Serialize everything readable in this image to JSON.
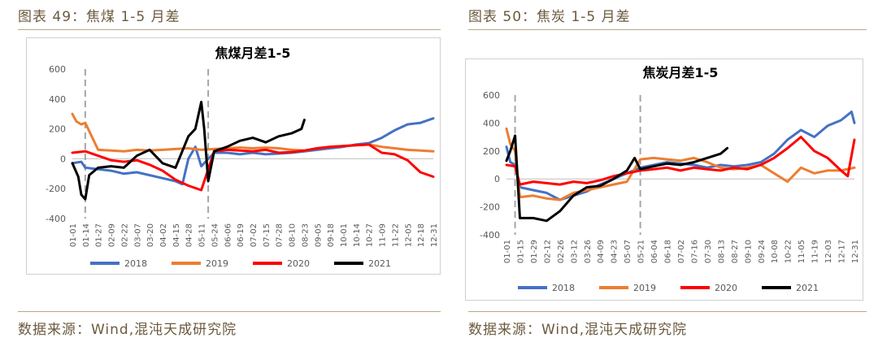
{
  "left": {
    "caption": "图表 49：焦煤 1-5 月差",
    "source": "数据来源：Wind,混沌天成研究院"
  },
  "right": {
    "caption": "图表 50：焦炭 1-5 月差",
    "source": "数据来源：Wind,混沌天成研究院"
  },
  "colors": {
    "2018": "#4472c4",
    "2019": "#ed7d31",
    "2020": "#ff0000",
    "2021": "#000000",
    "caption": "#6b5a3e"
  },
  "chart_data": [
    {
      "type": "line",
      "title": "焦煤月差1-5",
      "ylim": [
        -400,
        600
      ],
      "yticks": [
        -400,
        -200,
        0,
        200,
        400,
        600
      ],
      "grid": false,
      "legend_position": "bottom",
      "xticks": [
        "01-01",
        "01-14",
        "01-27",
        "02-09",
        "02-22",
        "03-07",
        "03-20",
        "04-02",
        "04-15",
        "04-28",
        "05-11",
        "05-24",
        "06-06",
        "06-19",
        "07-02",
        "07-15",
        "07-28",
        "08-10",
        "08-23",
        "09-05",
        "09-18",
        "10-01",
        "10-14",
        "10-27",
        "11-09",
        "11-22",
        "12-05",
        "12-18",
        "12-31"
      ],
      "vlines": [
        "01-14",
        "05-18"
      ],
      "series": [
        {
          "name": "2018",
          "color": "#4472c4",
          "x": [
            "01-01",
            "01-10",
            "01-14",
            "01-27",
            "02-09",
            "02-22",
            "03-07",
            "03-20",
            "04-02",
            "04-15",
            "04-22",
            "04-28",
            "05-05",
            "05-11",
            "05-24",
            "06-06",
            "06-19",
            "07-02",
            "07-15",
            "07-28",
            "08-10",
            "08-23",
            "09-05",
            "09-18",
            "10-01",
            "10-14",
            "10-27",
            "11-09",
            "11-22",
            "12-05",
            "12-18",
            "12-31"
          ],
          "y": [
            -30,
            -20,
            -60,
            -70,
            -80,
            -100,
            -90,
            -110,
            -130,
            -150,
            -170,
            0,
            80,
            -50,
            40,
            40,
            30,
            40,
            30,
            35,
            40,
            50,
            60,
            70,
            80,
            95,
            105,
            140,
            190,
            230,
            240,
            270
          ]
        },
        {
          "name": "2019",
          "color": "#ed7d31",
          "x": [
            "01-01",
            "01-05",
            "01-10",
            "01-14",
            "01-27",
            "02-09",
            "02-22",
            "03-07",
            "03-20",
            "04-02",
            "04-15",
            "04-28",
            "05-11",
            "05-24",
            "06-06",
            "06-19",
            "07-02",
            "07-15",
            "07-28",
            "08-10",
            "08-23",
            "09-05",
            "09-18",
            "10-01",
            "10-14",
            "10-27",
            "11-09",
            "11-22",
            "12-05",
            "12-18",
            "12-31"
          ],
          "y": [
            300,
            250,
            230,
            240,
            60,
            55,
            50,
            60,
            55,
            60,
            65,
            70,
            60,
            65,
            70,
            75,
            70,
            75,
            70,
            60,
            55,
            70,
            80,
            85,
            90,
            95,
            80,
            70,
            60,
            55,
            50
          ]
        },
        {
          "name": "2020",
          "color": "#ff0000",
          "x": [
            "01-01",
            "01-14",
            "01-27",
            "02-09",
            "02-22",
            "03-07",
            "03-20",
            "04-02",
            "04-15",
            "04-28",
            "05-11",
            "05-24",
            "06-06",
            "06-19",
            "07-02",
            "07-15",
            "07-28",
            "08-10",
            "08-23",
            "09-05",
            "09-18",
            "10-01",
            "10-14",
            "10-27",
            "11-09",
            "11-22",
            "12-05",
            "12-18",
            "12-31"
          ],
          "y": [
            40,
            50,
            20,
            -10,
            -20,
            -10,
            -40,
            -80,
            -140,
            -180,
            -210,
            50,
            60,
            55,
            50,
            60,
            40,
            45,
            55,
            70,
            80,
            85,
            90,
            95,
            40,
            30,
            -10,
            -90,
            -120
          ]
        },
        {
          "name": "2021",
          "color": "#000000",
          "x": [
            "01-01",
            "01-07",
            "01-10",
            "01-14",
            "01-18",
            "01-27",
            "02-09",
            "02-22",
            "03-07",
            "03-20",
            "04-02",
            "04-15",
            "04-28",
            "05-05",
            "05-11",
            "05-14",
            "05-18",
            "05-24",
            "06-06",
            "06-19",
            "07-02",
            "07-15",
            "07-28",
            "08-10",
            "08-20",
            "08-23"
          ],
          "y": [
            -30,
            -120,
            -240,
            -270,
            -110,
            -60,
            -50,
            -60,
            20,
            60,
            -30,
            -60,
            150,
            200,
            380,
            200,
            -150,
            50,
            80,
            120,
            140,
            110,
            150,
            170,
            200,
            260
          ]
        }
      ]
    },
    {
      "type": "line",
      "title": "焦炭月差1-5",
      "ylim": [
        -400,
        600
      ],
      "yticks": [
        -400,
        -200,
        0,
        200,
        400,
        600
      ],
      "grid": false,
      "legend_position": "bottom",
      "xticks": [
        "01-01",
        "01-15",
        "01-29",
        "02-12",
        "02-26",
        "03-12",
        "03-26",
        "04-09",
        "04-23",
        "05-07",
        "05-21",
        "06-04",
        "06-18",
        "07-02",
        "07-16",
        "07-30",
        "08-13",
        "08-27",
        "09-10",
        "09-24",
        "10-08",
        "10-22",
        "11-05",
        "11-19",
        "12-03",
        "12-17",
        "12-31"
      ],
      "vlines": [
        "01-10",
        "05-21"
      ],
      "series": [
        {
          "name": "2018",
          "color": "#4472c4",
          "x": [
            "01-01",
            "01-05",
            "01-10",
            "01-15",
            "01-29",
            "02-12",
            "02-26",
            "03-12",
            "03-26",
            "04-09",
            "04-23",
            "05-07",
            "05-21",
            "06-04",
            "06-18",
            "07-02",
            "07-16",
            "07-30",
            "08-13",
            "08-27",
            "09-10",
            "09-24",
            "10-08",
            "10-22",
            "11-05",
            "11-19",
            "12-03",
            "12-17",
            "12-28",
            "12-31"
          ],
          "y": [
            230,
            120,
            100,
            -60,
            -80,
            -100,
            -150,
            -120,
            -90,
            -40,
            0,
            40,
            80,
            100,
            120,
            110,
            100,
            80,
            100,
            90,
            100,
            120,
            180,
            280,
            350,
            300,
            380,
            420,
            480,
            400
          ]
        },
        {
          "name": "2019",
          "color": "#ed7d31",
          "x": [
            "01-01",
            "01-05",
            "01-10",
            "01-15",
            "01-29",
            "02-12",
            "02-26",
            "03-12",
            "03-26",
            "04-09",
            "04-23",
            "05-07",
            "05-21",
            "06-04",
            "06-18",
            "07-02",
            "07-16",
            "07-30",
            "08-13",
            "08-27",
            "09-10",
            "09-24",
            "10-08",
            "10-22",
            "11-05",
            "11-19",
            "12-03",
            "12-17",
            "12-31"
          ],
          "y": [
            360,
            250,
            200,
            -130,
            -120,
            -140,
            -150,
            -100,
            -80,
            -60,
            -40,
            -20,
            140,
            150,
            140,
            130,
            150,
            120,
            80,
            70,
            80,
            100,
            40,
            -20,
            80,
            40,
            60,
            60,
            80
          ]
        },
        {
          "name": "2020",
          "color": "#ff0000",
          "x": [
            "01-01",
            "01-10",
            "01-15",
            "01-29",
            "02-12",
            "02-26",
            "03-12",
            "03-26",
            "04-09",
            "04-23",
            "05-07",
            "05-21",
            "06-04",
            "06-18",
            "07-02",
            "07-16",
            "07-30",
            "08-13",
            "08-27",
            "09-10",
            "09-24",
            "10-08",
            "10-22",
            "11-05",
            "11-19",
            "12-03",
            "12-17",
            "12-24",
            "12-31"
          ],
          "y": [
            100,
            90,
            -40,
            -20,
            -30,
            -40,
            -20,
            -30,
            -10,
            20,
            40,
            60,
            70,
            80,
            60,
            80,
            70,
            60,
            80,
            70,
            100,
            150,
            220,
            300,
            200,
            150,
            60,
            20,
            280
          ]
        },
        {
          "name": "2021",
          "color": "#000000",
          "x": [
            "01-01",
            "01-05",
            "01-10",
            "01-15",
            "01-29",
            "02-12",
            "02-26",
            "03-12",
            "03-26",
            "04-09",
            "04-23",
            "05-07",
            "05-15",
            "05-21",
            "06-04",
            "06-18",
            "07-02",
            "07-16",
            "07-30",
            "08-13",
            "08-20"
          ],
          "y": [
            130,
            200,
            310,
            -280,
            -280,
            -300,
            -230,
            -120,
            -60,
            -50,
            0,
            60,
            150,
            70,
            90,
            110,
            100,
            120,
            150,
            180,
            220
          ]
        }
      ]
    }
  ]
}
